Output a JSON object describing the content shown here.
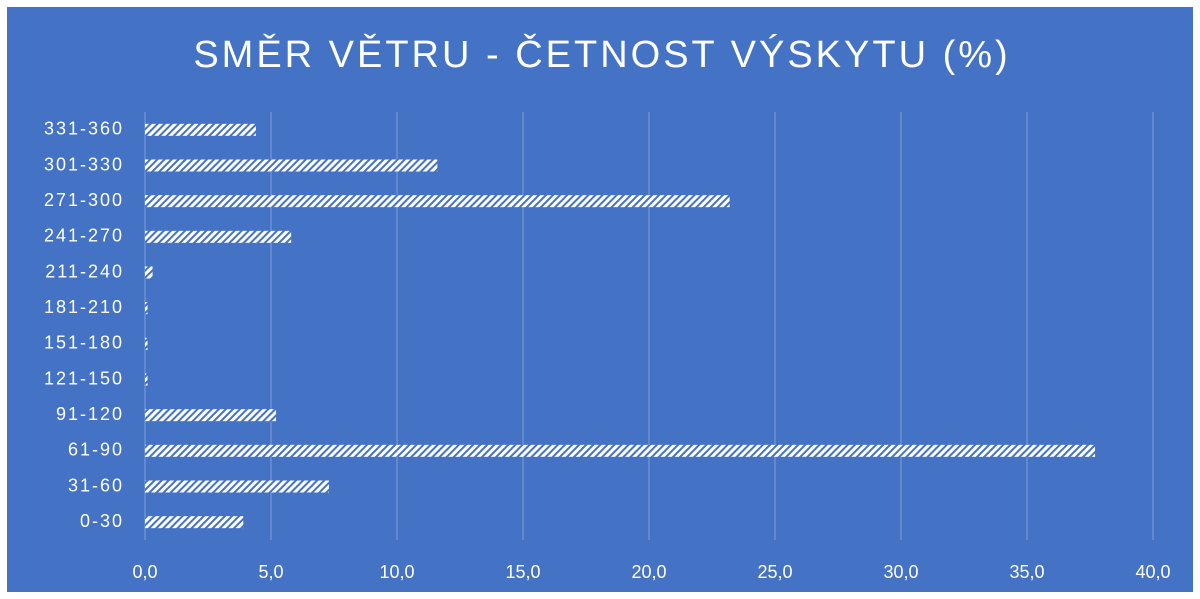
{
  "chart_data": {
    "type": "barh",
    "title": "SMĚR VĚTRU - ČETNOST VÝSKYTU (%)",
    "categories": [
      "0-30",
      "31-60",
      "61-90",
      "91-120",
      "121-150",
      "151-180",
      "181-210",
      "211-240",
      "241-270",
      "271-300",
      "301-330",
      "331-360"
    ],
    "values": [
      3.9,
      7.3,
      37.7,
      5.2,
      0.1,
      0.1,
      0.1,
      0.3,
      5.8,
      23.2,
      11.6,
      4.4
    ],
    "color": "#ffffff",
    "xlim": [
      0,
      40
    ],
    "xticks": [
      {
        "value": 0,
        "label": "0,0"
      },
      {
        "value": 5,
        "label": "5,0"
      },
      {
        "value": 10,
        "label": "10,0"
      },
      {
        "value": 15,
        "label": "15,0"
      },
      {
        "value": 20,
        "label": "20,0"
      },
      {
        "value": 25,
        "label": "25,0"
      },
      {
        "value": 30,
        "label": "30,0"
      },
      {
        "value": 35,
        "label": "35,0"
      },
      {
        "value": 40,
        "label": "40,0"
      }
    ],
    "grid": true
  }
}
